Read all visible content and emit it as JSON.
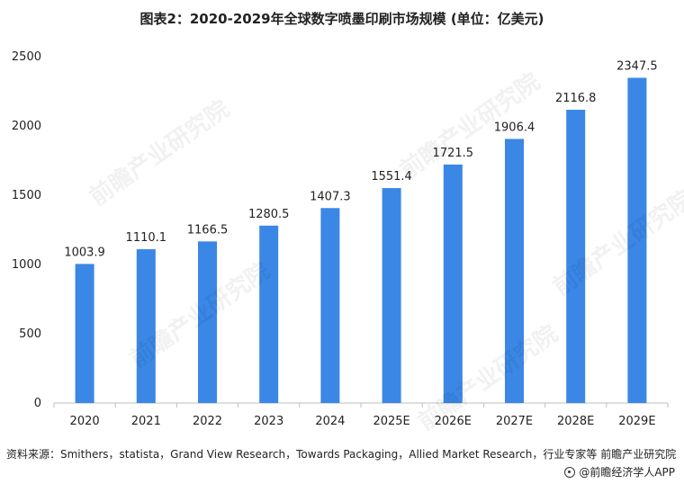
{
  "title": "图表2：2020-2029年全球数字喷墨印刷市场规模 (单位：亿美元)",
  "watermark_text": "前瞻产业研究院",
  "source": "资料来源：Smithers，statista，Grand View Research，Towards Packaging，Allied Market Research，行业专家等 前瞻产业研究院",
  "credit": "@前瞻经济学人APP",
  "colors": {
    "bar": "#3A87E6",
    "axis": "#bfbfbf",
    "text": "#222222"
  },
  "chart_data": {
    "type": "bar",
    "categories": [
      "2020",
      "2021",
      "2022",
      "2023",
      "2024",
      "2025E",
      "2026E",
      "2027E",
      "2028E",
      "2029E"
    ],
    "values": [
      1003.9,
      1110.1,
      1166.5,
      1280.5,
      1407.3,
      1551.4,
      1721.5,
      1906.4,
      2116.8,
      2347.5
    ],
    "value_labels": [
      "1003.9",
      "1110.1",
      "1166.5",
      "1280.5",
      "1407.3",
      "1551.4",
      "1721.5",
      "1906.4",
      "2116.8",
      "2347.5"
    ],
    "ylim": [
      0,
      2500
    ],
    "yticks": [
      "0",
      "500",
      "1000",
      "1500",
      "2000",
      "2500"
    ],
    "grid": false
  }
}
